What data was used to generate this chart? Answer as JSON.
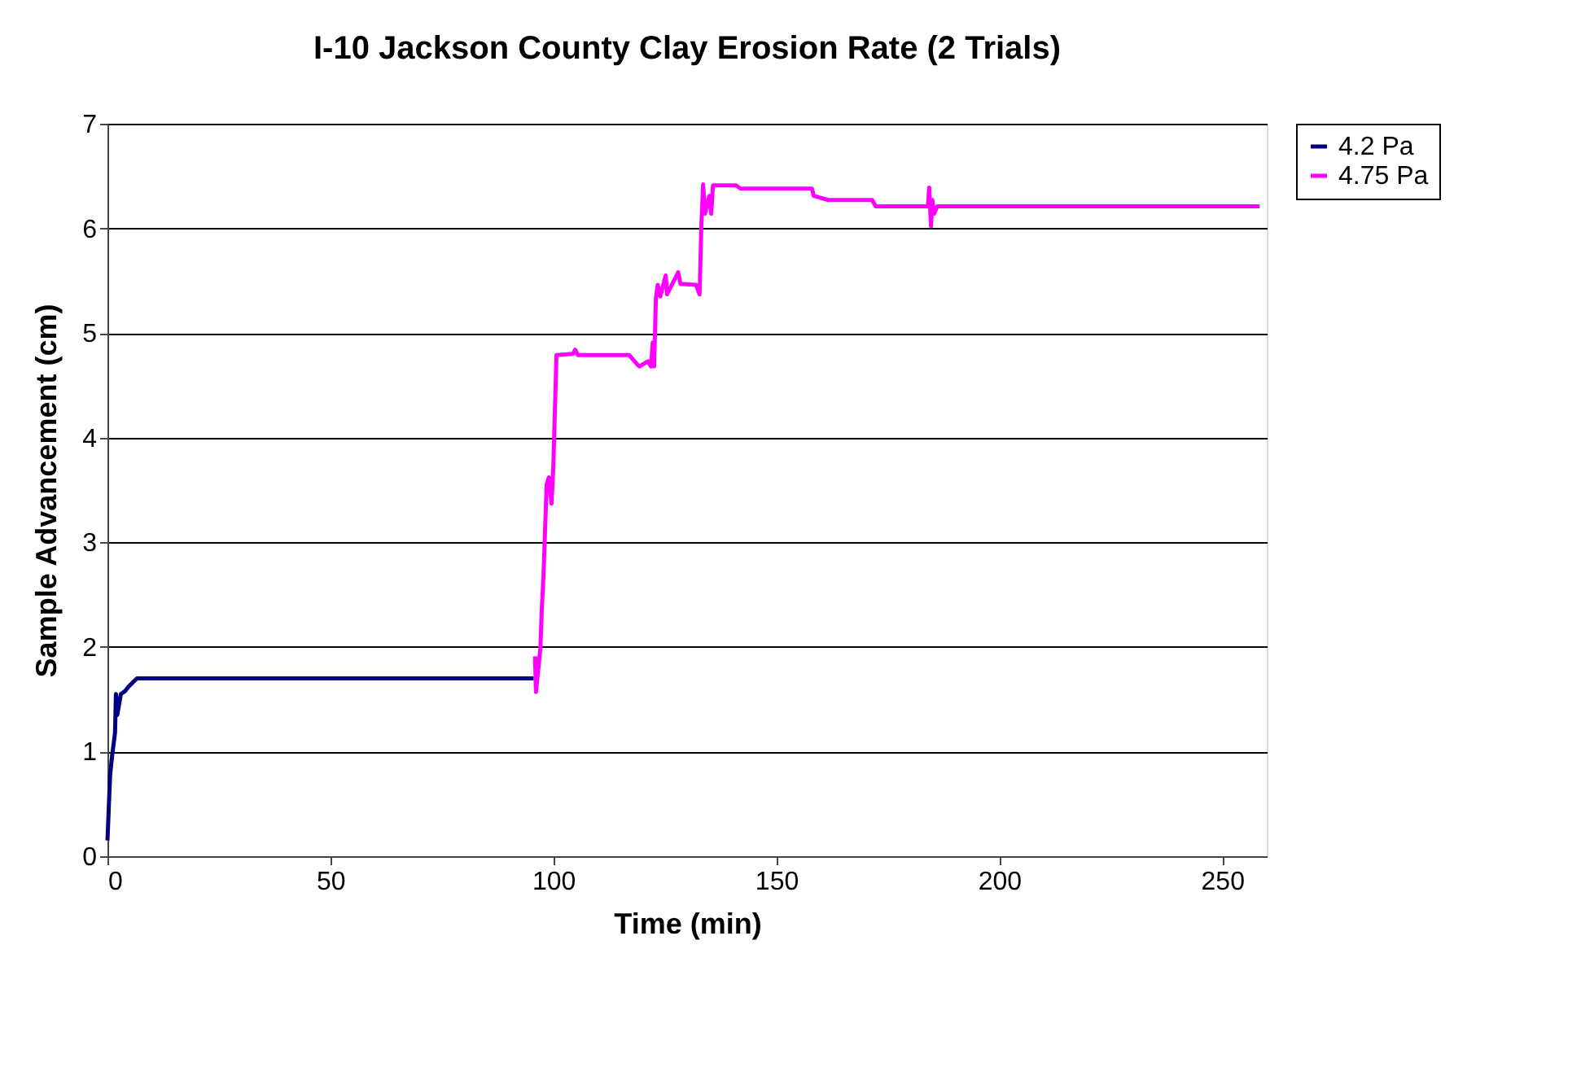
{
  "chart_data": {
    "type": "line",
    "title": "I-10 Jackson County Clay Erosion Rate (2 Trials)",
    "xlabel": "Time (min)",
    "ylabel": "Sample Advancement (cm)",
    "xlim": [
      0,
      260
    ],
    "xticks": [
      0,
      50,
      100,
      150,
      200,
      250
    ],
    "ylim": [
      0,
      7
    ],
    "yticks": [
      0,
      1,
      2,
      3,
      4,
      5,
      6,
      7
    ],
    "grid": "y",
    "legend": "right",
    "line_style": "solid",
    "marker": "none",
    "series": [
      {
        "name": "4.2 Pa",
        "color": "#000080",
        "x": [
          0,
          0.6,
          1.1,
          1.7,
          1.9,
          2.2,
          3.0,
          4.0,
          4.7,
          6.6,
          95.6
        ],
        "values": [
          0.15,
          0.78,
          0.98,
          1.18,
          1.55,
          1.35,
          1.55,
          1.58,
          1.62,
          1.7,
          1.7
        ]
      },
      {
        "name": "4.75 Pa",
        "color": "#ff00ff",
        "x": [
          95.9,
          96.1,
          97.1,
          97.4,
          97.8,
          98.5,
          99.0,
          99.6,
          100.0,
          100.7,
          104.4,
          104.9,
          105.5,
          117.0,
          118.6,
          119.3,
          121.2,
          121.9,
          122.3,
          122.6,
          123.0,
          123.4,
          124.0,
          125.2,
          125.5,
          128.0,
          128.5,
          132.0,
          132.8,
          133.2,
          133.6,
          134.0,
          135.0,
          135.4,
          135.8,
          141.0,
          142.0,
          158.0,
          158.4,
          161.7,
          171.5,
          172.3,
          184.0,
          184.3,
          184.7,
          185.0,
          185.4,
          186.1,
          258.4
        ],
        "values": [
          1.91,
          1.57,
          1.99,
          2.35,
          2.69,
          3.55,
          3.62,
          3.37,
          3.73,
          4.79,
          4.8,
          4.84,
          4.79,
          4.79,
          4.71,
          4.68,
          4.73,
          4.68,
          4.91,
          4.68,
          5.33,
          5.46,
          5.35,
          5.55,
          5.37,
          5.58,
          5.47,
          5.46,
          5.37,
          6.03,
          6.42,
          6.14,
          6.31,
          6.14,
          6.41,
          6.41,
          6.38,
          6.38,
          6.31,
          6.27,
          6.27,
          6.21,
          6.21,
          6.39,
          6.02,
          6.27,
          6.14,
          6.21,
          6.21
        ]
      }
    ]
  }
}
